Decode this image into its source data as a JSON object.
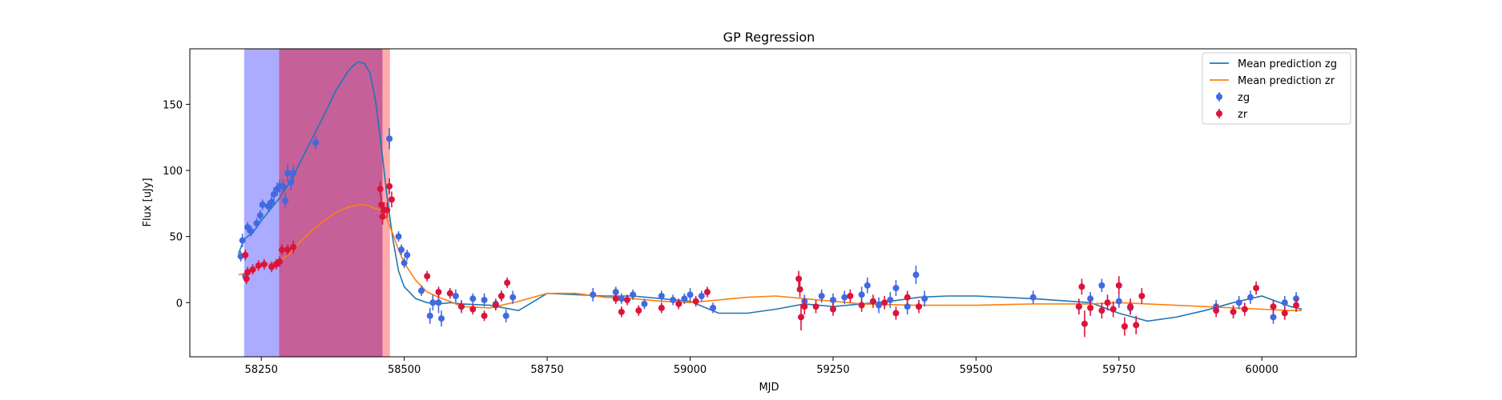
{
  "chart_data": {
    "type": "scatter",
    "title": "GP Regression",
    "xlabel": "MJD",
    "ylabel": "Flux [uJy]",
    "xlim": [
      58125,
      60165
    ],
    "ylim": [
      -41,
      192
    ],
    "xticks": [
      58250,
      58500,
      58750,
      59000,
      59250,
      59500,
      59750,
      60000
    ],
    "yticks": [
      0,
      50,
      100,
      150
    ],
    "legend_position": "top-right",
    "legend": [
      "Mean prediction zg",
      "Mean prediction zr",
      "zg",
      "zr"
    ],
    "shaded_regions": [
      {
        "x0": 58220,
        "x1": 58281,
        "color": "#0000ff",
        "opacity": 0.33
      },
      {
        "x0": 58281,
        "x1": 58462,
        "color": "#ad1d6e",
        "opacity": 0.7
      },
      {
        "x0": 58462,
        "x1": 58475,
        "color": "#ff0000",
        "opacity": 0.33
      }
    ],
    "series": [
      {
        "name": "Mean prediction zg",
        "kind": "line",
        "color": "#1f77b4",
        "x": [
          58210,
          58220,
          58235,
          58250,
          58265,
          58280,
          58300,
          58320,
          58340,
          58360,
          58380,
          58400,
          58410,
          58420,
          58430,
          58440,
          58450,
          58460,
          58470,
          58480,
          58490,
          58500,
          58520,
          58540,
          58560,
          58580,
          58600,
          58650,
          58700,
          58750,
          58800,
          58850,
          58900,
          58950,
          59000,
          59050,
          59100,
          59150,
          59200,
          59250,
          59300,
          59350,
          59400,
          59450,
          59500,
          59600,
          59700,
          59750,
          59800,
          59850,
          59900,
          59950,
          60000,
          60050,
          60070
        ],
        "y": [
          37,
          48,
          53,
          62,
          70,
          78,
          91,
          108,
          125,
          142,
          160,
          174,
          179,
          182,
          181,
          174,
          152,
          118,
          80,
          48,
          24,
          12,
          3,
          0,
          -1,
          0,
          -1,
          -2,
          -6,
          7,
          6,
          5,
          5,
          3,
          1,
          -8,
          -8,
          -5,
          -1,
          -3,
          -1,
          1,
          4,
          5,
          5,
          3,
          0,
          -8,
          -14,
          -11,
          -6,
          0,
          5,
          -3,
          -5
        ]
      },
      {
        "name": "Mean prediction zr",
        "kind": "line",
        "color": "#ff7f0e",
        "x": [
          58210,
          58220,
          58240,
          58260,
          58280,
          58300,
          58320,
          58340,
          58360,
          58380,
          58400,
          58420,
          58430,
          58440,
          58450,
          58460,
          58470,
          58480,
          58490,
          58500,
          58520,
          58540,
          58560,
          58580,
          58600,
          58650,
          58700,
          58750,
          58800,
          58850,
          58900,
          58950,
          59000,
          59050,
          59100,
          59150,
          59200,
          59250,
          59300,
          59400,
          59500,
          59600,
          59700,
          59750,
          59800,
          59850,
          59900,
          59950,
          60000,
          60050,
          60070
        ],
        "y": [
          21,
          22,
          26,
          29,
          31,
          37,
          47,
          55,
          62,
          68,
          72,
          74,
          74,
          73,
          71,
          70,
          63,
          52,
          40,
          30,
          17,
          8,
          4,
          1,
          -3,
          -4,
          1,
          7,
          7,
          4,
          3,
          1,
          0,
          2,
          4,
          5,
          3,
          1,
          -1,
          -2,
          -2,
          -1,
          -1,
          0,
          -1,
          -2,
          -3,
          -4,
          -5,
          -6,
          -6
        ]
      },
      {
        "name": "zg",
        "kind": "errorbar",
        "color": "#4169e1",
        "points": [
          [
            58214,
            35,
            4
          ],
          [
            58217,
            47,
            5
          ],
          [
            58222,
            20,
            4
          ],
          [
            58226,
            57,
            4
          ],
          [
            58232,
            54,
            4
          ],
          [
            58242,
            60,
            4
          ],
          [
            58248,
            66,
            4
          ],
          [
            58252,
            74,
            4
          ],
          [
            58262,
            73,
            4
          ],
          [
            58268,
            76,
            5
          ],
          [
            58272,
            82,
            5
          ],
          [
            58278,
            86,
            5
          ],
          [
            58282,
            88,
            5
          ],
          [
            58288,
            88,
            5
          ],
          [
            58292,
            77,
            6
          ],
          [
            58296,
            98,
            7
          ],
          [
            58302,
            91,
            6
          ],
          [
            58306,
            98,
            6
          ],
          [
            58345,
            121,
            5
          ],
          [
            58474,
            124,
            8
          ],
          [
            58490,
            50,
            4
          ],
          [
            58495,
            40,
            4
          ],
          [
            58500,
            30,
            4
          ],
          [
            58505,
            36,
            4
          ],
          [
            58530,
            9,
            4
          ],
          [
            58545,
            -10,
            6
          ],
          [
            58550,
            0,
            6
          ],
          [
            58560,
            0,
            8
          ],
          [
            58565,
            -12,
            6
          ],
          [
            58590,
            5,
            5
          ],
          [
            58600,
            -3,
            5
          ],
          [
            58620,
            3,
            4
          ],
          [
            58640,
            2,
            5
          ],
          [
            58660,
            -1,
            4
          ],
          [
            58670,
            5,
            4
          ],
          [
            58678,
            -10,
            5
          ],
          [
            58690,
            4,
            5
          ],
          [
            58830,
            6,
            5
          ],
          [
            58870,
            8,
            4
          ],
          [
            58880,
            3,
            4
          ],
          [
            58900,
            6,
            4
          ],
          [
            58920,
            -1,
            4
          ],
          [
            58950,
            5,
            4
          ],
          [
            58970,
            2,
            4
          ],
          [
            58990,
            3,
            4
          ],
          [
            59000,
            6,
            5
          ],
          [
            59020,
            5,
            4
          ],
          [
            59040,
            -4,
            4
          ],
          [
            59200,
            1,
            5
          ],
          [
            59230,
            5,
            5
          ],
          [
            59250,
            2,
            5
          ],
          [
            59270,
            4,
            5
          ],
          [
            59300,
            6,
            6
          ],
          [
            59310,
            13,
            6
          ],
          [
            59330,
            -2,
            6
          ],
          [
            59350,
            2,
            6
          ],
          [
            59360,
            11,
            6
          ],
          [
            59380,
            -3,
            6
          ],
          [
            59395,
            21,
            7
          ],
          [
            59410,
            3,
            6
          ],
          [
            59600,
            4,
            5
          ],
          [
            59680,
            -3,
            5
          ],
          [
            59700,
            3,
            5
          ],
          [
            59720,
            13,
            5
          ],
          [
            59750,
            1,
            5
          ],
          [
            59770,
            -4,
            5
          ],
          [
            59920,
            -3,
            5
          ],
          [
            59960,
            0,
            5
          ],
          [
            59980,
            4,
            5
          ],
          [
            60020,
            -11,
            5
          ],
          [
            60040,
            0,
            5
          ],
          [
            60060,
            3,
            5
          ]
        ]
      },
      {
        "name": "zr",
        "kind": "errorbar",
        "color": "#dc143c",
        "points": [
          [
            58222,
            36,
            4
          ],
          [
            58224,
            18,
            4
          ],
          [
            58226,
            23,
            4
          ],
          [
            58235,
            25,
            4
          ],
          [
            58245,
            28,
            4
          ],
          [
            58255,
            29,
            4
          ],
          [
            58268,
            27,
            4
          ],
          [
            58276,
            29,
            4
          ],
          [
            58282,
            31,
            4
          ],
          [
            58286,
            40,
            4
          ],
          [
            58296,
            40,
            4
          ],
          [
            58306,
            42,
            5
          ],
          [
            58458,
            86,
            6
          ],
          [
            58460,
            74,
            6
          ],
          [
            58462,
            65,
            6
          ],
          [
            58465,
            70,
            6
          ],
          [
            58470,
            70,
            6
          ],
          [
            58474,
            88,
            6
          ],
          [
            58478,
            78,
            6
          ],
          [
            58540,
            20,
            4
          ],
          [
            58560,
            8,
            4
          ],
          [
            58580,
            7,
            4
          ],
          [
            58600,
            -3,
            4
          ],
          [
            58620,
            -5,
            4
          ],
          [
            58640,
            -10,
            4
          ],
          [
            58660,
            -2,
            4
          ],
          [
            58670,
            5,
            4
          ],
          [
            58680,
            15,
            4
          ],
          [
            58870,
            3,
            4
          ],
          [
            58880,
            -7,
            4
          ],
          [
            58890,
            2,
            4
          ],
          [
            58910,
            -6,
            4
          ],
          [
            58950,
            -4,
            4
          ],
          [
            58980,
            -1,
            4
          ],
          [
            59010,
            1,
            4
          ],
          [
            59030,
            8,
            4
          ],
          [
            59190,
            18,
            6
          ],
          [
            59192,
            10,
            6
          ],
          [
            59194,
            -11,
            10
          ],
          [
            59200,
            -3,
            6
          ],
          [
            59220,
            -3,
            5
          ],
          [
            59250,
            -5,
            5
          ],
          [
            59280,
            5,
            5
          ],
          [
            59300,
            -2,
            5
          ],
          [
            59320,
            1,
            5
          ],
          [
            59340,
            0,
            5
          ],
          [
            59360,
            -8,
            5
          ],
          [
            59380,
            4,
            5
          ],
          [
            59400,
            -3,
            5
          ],
          [
            59680,
            -3,
            6
          ],
          [
            59685,
            12,
            6
          ],
          [
            59690,
            -16,
            10
          ],
          [
            59700,
            -4,
            6
          ],
          [
            59720,
            -6,
            6
          ],
          [
            59730,
            0,
            6
          ],
          [
            59740,
            -5,
            6
          ],
          [
            59750,
            13,
            7
          ],
          [
            59760,
            -18,
            7
          ],
          [
            59770,
            -3,
            6
          ],
          [
            59780,
            -17,
            7
          ],
          [
            59790,
            5,
            6
          ],
          [
            59920,
            -6,
            5
          ],
          [
            59950,
            -7,
            5
          ],
          [
            59970,
            -5,
            5
          ],
          [
            59990,
            11,
            5
          ],
          [
            60020,
            -3,
            5
          ],
          [
            60040,
            -8,
            5
          ],
          [
            60060,
            -2,
            5
          ]
        ]
      }
    ]
  }
}
